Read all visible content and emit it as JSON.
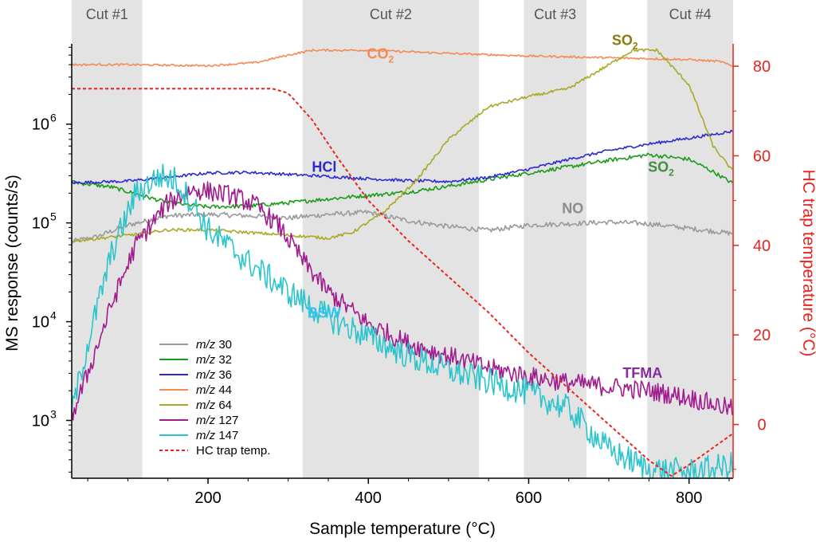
{
  "chart_data": {
    "type": "line",
    "xlabel": "Sample temperature (°C)",
    "ylabel": "MS response (counts/s)",
    "y2label": "HC trap temperature (°C)",
    "x_ticks": [
      200,
      400,
      600,
      800
    ],
    "xlim": [
      30,
      855
    ],
    "yscale": "log",
    "ylim": [
      260,
      6500000
    ],
    "y_ticks": [
      {
        "value": 1000,
        "base": "10",
        "exp": "3"
      },
      {
        "value": 10000,
        "base": "10",
        "exp": "4"
      },
      {
        "value": 100000,
        "base": "10",
        "exp": "5"
      },
      {
        "value": 1000000,
        "base": "10",
        "exp": "6"
      }
    ],
    "y2lim": [
      -12,
      85
    ],
    "y2_ticks": [
      0,
      20,
      40,
      60,
      80
    ],
    "cut_regions": [
      {
        "label": "Cut #1",
        "x0": 30,
        "x1": 118
      },
      {
        "label": "Cut #2",
        "x0": 318,
        "x1": 538
      },
      {
        "label": "Cut #3",
        "x0": 594,
        "x1": 672
      },
      {
        "label": "Cut #4",
        "x0": 748,
        "x1": 855
      }
    ],
    "series": [
      {
        "name": "m/z 30",
        "legend_prefix": "m/z",
        "legend_num": "30",
        "color": "#9a9a9a",
        "axis": "left",
        "noise": 0.025,
        "x": [
          30,
          60,
          100,
          150,
          200,
          250,
          300,
          350,
          400,
          450,
          500,
          550,
          600,
          650,
          700,
          750,
          800,
          855
        ],
        "y": [
          65000,
          72000,
          95000,
          118000,
          122000,
          118000,
          112000,
          122000,
          128000,
          105000,
          92000,
          84000,
          95000,
          98000,
          102000,
          98000,
          88000,
          78000
        ]
      },
      {
        "name": "m/z 32",
        "legend_prefix": "m/z",
        "legend_num": "32",
        "color": "#1a9c1a",
        "axis": "left",
        "noise": 0.02,
        "x": [
          30,
          80,
          150,
          200,
          250,
          300,
          350,
          400,
          450,
          500,
          550,
          600,
          650,
          700,
          750,
          800,
          830,
          855
        ],
        "y": [
          260000,
          230000,
          160000,
          145000,
          148000,
          160000,
          175000,
          190000,
          205000,
          235000,
          275000,
          320000,
          370000,
          430000,
          490000,
          440000,
          330000,
          250000
        ]
      },
      {
        "name": "m/z 36",
        "legend_prefix": "m/z",
        "legend_num": "36",
        "color": "#2a2acf",
        "axis": "left",
        "noise": 0.015,
        "x": [
          30,
          100,
          150,
          200,
          250,
          300,
          350,
          400,
          450,
          500,
          550,
          600,
          650,
          700,
          750,
          800,
          855
        ],
        "y": [
          255000,
          265000,
          290000,
          320000,
          325000,
          310000,
          295000,
          280000,
          268000,
          262000,
          290000,
          350000,
          440000,
          540000,
          630000,
          720000,
          850000
        ]
      },
      {
        "name": "m/z 44",
        "legend_prefix": "m/z",
        "legend_num": "44",
        "color": "#f58a55",
        "axis": "left",
        "noise": 0.01,
        "x": [
          30,
          100,
          200,
          260,
          300,
          330,
          400,
          500,
          600,
          700,
          800,
          840,
          855
        ],
        "y": [
          4000000,
          4000000,
          3900000,
          4200000,
          5000000,
          5600000,
          5600000,
          5200000,
          4900000,
          4700000,
          4500000,
          4300000,
          3800000
        ]
      },
      {
        "name": "m/z 64",
        "legend_prefix": "m/z",
        "legend_num": "64",
        "color": "#a9a928",
        "axis": "left",
        "noise": 0.015,
        "x": [
          30,
          100,
          150,
          200,
          250,
          300,
          350,
          380,
          420,
          460,
          500,
          550,
          600,
          650,
          700,
          730,
          760,
          800,
          830,
          855
        ],
        "y": [
          65000,
          75000,
          85000,
          85000,
          80000,
          75000,
          70000,
          80000,
          130000,
          270000,
          700000,
          1500000,
          1900000,
          2300000,
          4000000,
          5600000,
          5600000,
          2500000,
          600000,
          330000
        ]
      },
      {
        "name": "m/z 127",
        "legend_prefix": "m/z",
        "legend_num": "127",
        "color": "#a01c8e",
        "axis": "left",
        "noise": 0.1,
        "x": [
          30,
          50,
          80,
          110,
          150,
          180,
          200,
          230,
          260,
          290,
          320,
          350,
          400,
          450,
          500,
          550,
          600,
          650,
          700,
          750,
          800,
          855
        ],
        "y": [
          1100,
          3000,
          15000,
          60000,
          160000,
          215000,
          210000,
          190000,
          150000,
          90000,
          40000,
          20000,
          9500,
          6000,
          4500,
          3400,
          2800,
          2400,
          2200,
          2000,
          1700,
          1300
        ]
      },
      {
        "name": "m/z 147",
        "legend_prefix": "m/z",
        "legend_num": "147",
        "color": "#2cc4cc",
        "axis": "left",
        "noise": 0.14,
        "x": [
          30,
          50,
          80,
          110,
          140,
          160,
          180,
          200,
          250,
          300,
          350,
          400,
          450,
          500,
          550,
          600,
          650,
          700,
          750,
          800,
          855
        ],
        "y": [
          1200,
          6000,
          50000,
          200000,
          300000,
          270000,
          160000,
          85000,
          40000,
          20000,
          11000,
          7000,
          4500,
          3200,
          2500,
          1900,
          1300,
          500,
          320,
          300,
          350
        ]
      },
      {
        "name": "HC trap temp.",
        "legend_prefix": "",
        "legend_num": "HC trap temp.",
        "color": "#e8231f",
        "axis": "right",
        "dashed": true,
        "noise": 0,
        "x": [
          30,
          100,
          200,
          250,
          280,
          300,
          330,
          360,
          400,
          450,
          500,
          550,
          600,
          650,
          700,
          750,
          778,
          800,
          855
        ],
        "y": [
          75,
          75,
          75,
          75,
          75,
          74,
          68,
          60,
          50,
          41,
          33,
          25,
          16,
          8,
          0,
          -8,
          -11.5,
          -9,
          -2
        ]
      }
    ],
    "annotations": [
      {
        "text": "HCl",
        "sub": "",
        "color": "#2a2acf",
        "x": 345,
        "y": 330000,
        "axis": "left"
      },
      {
        "text": "CO",
        "sub": "2",
        "color": "#f58a55",
        "x": 415,
        "y": 4600000,
        "axis": "left"
      },
      {
        "text": "SO",
        "sub": "2",
        "color": "#8a7a10",
        "x": 720,
        "y": 6300000,
        "axis": "left"
      },
      {
        "text": "SO",
        "sub": "2",
        "color": "#3f8f3f",
        "x": 765,
        "y": 330000,
        "axis": "left"
      },
      {
        "text": "NO",
        "sub": "",
        "color": "#8c8c8c",
        "x": 655,
        "y": 125000,
        "axis": "left"
      },
      {
        "text": "BSW",
        "sub": "",
        "color": "#2cc4f0",
        "x": 345,
        "y": 11000,
        "axis": "left"
      },
      {
        "text": "TFMA",
        "sub": "",
        "color": "#8a2aa0",
        "x": 742,
        "y": 2700,
        "axis": "left"
      }
    ]
  }
}
